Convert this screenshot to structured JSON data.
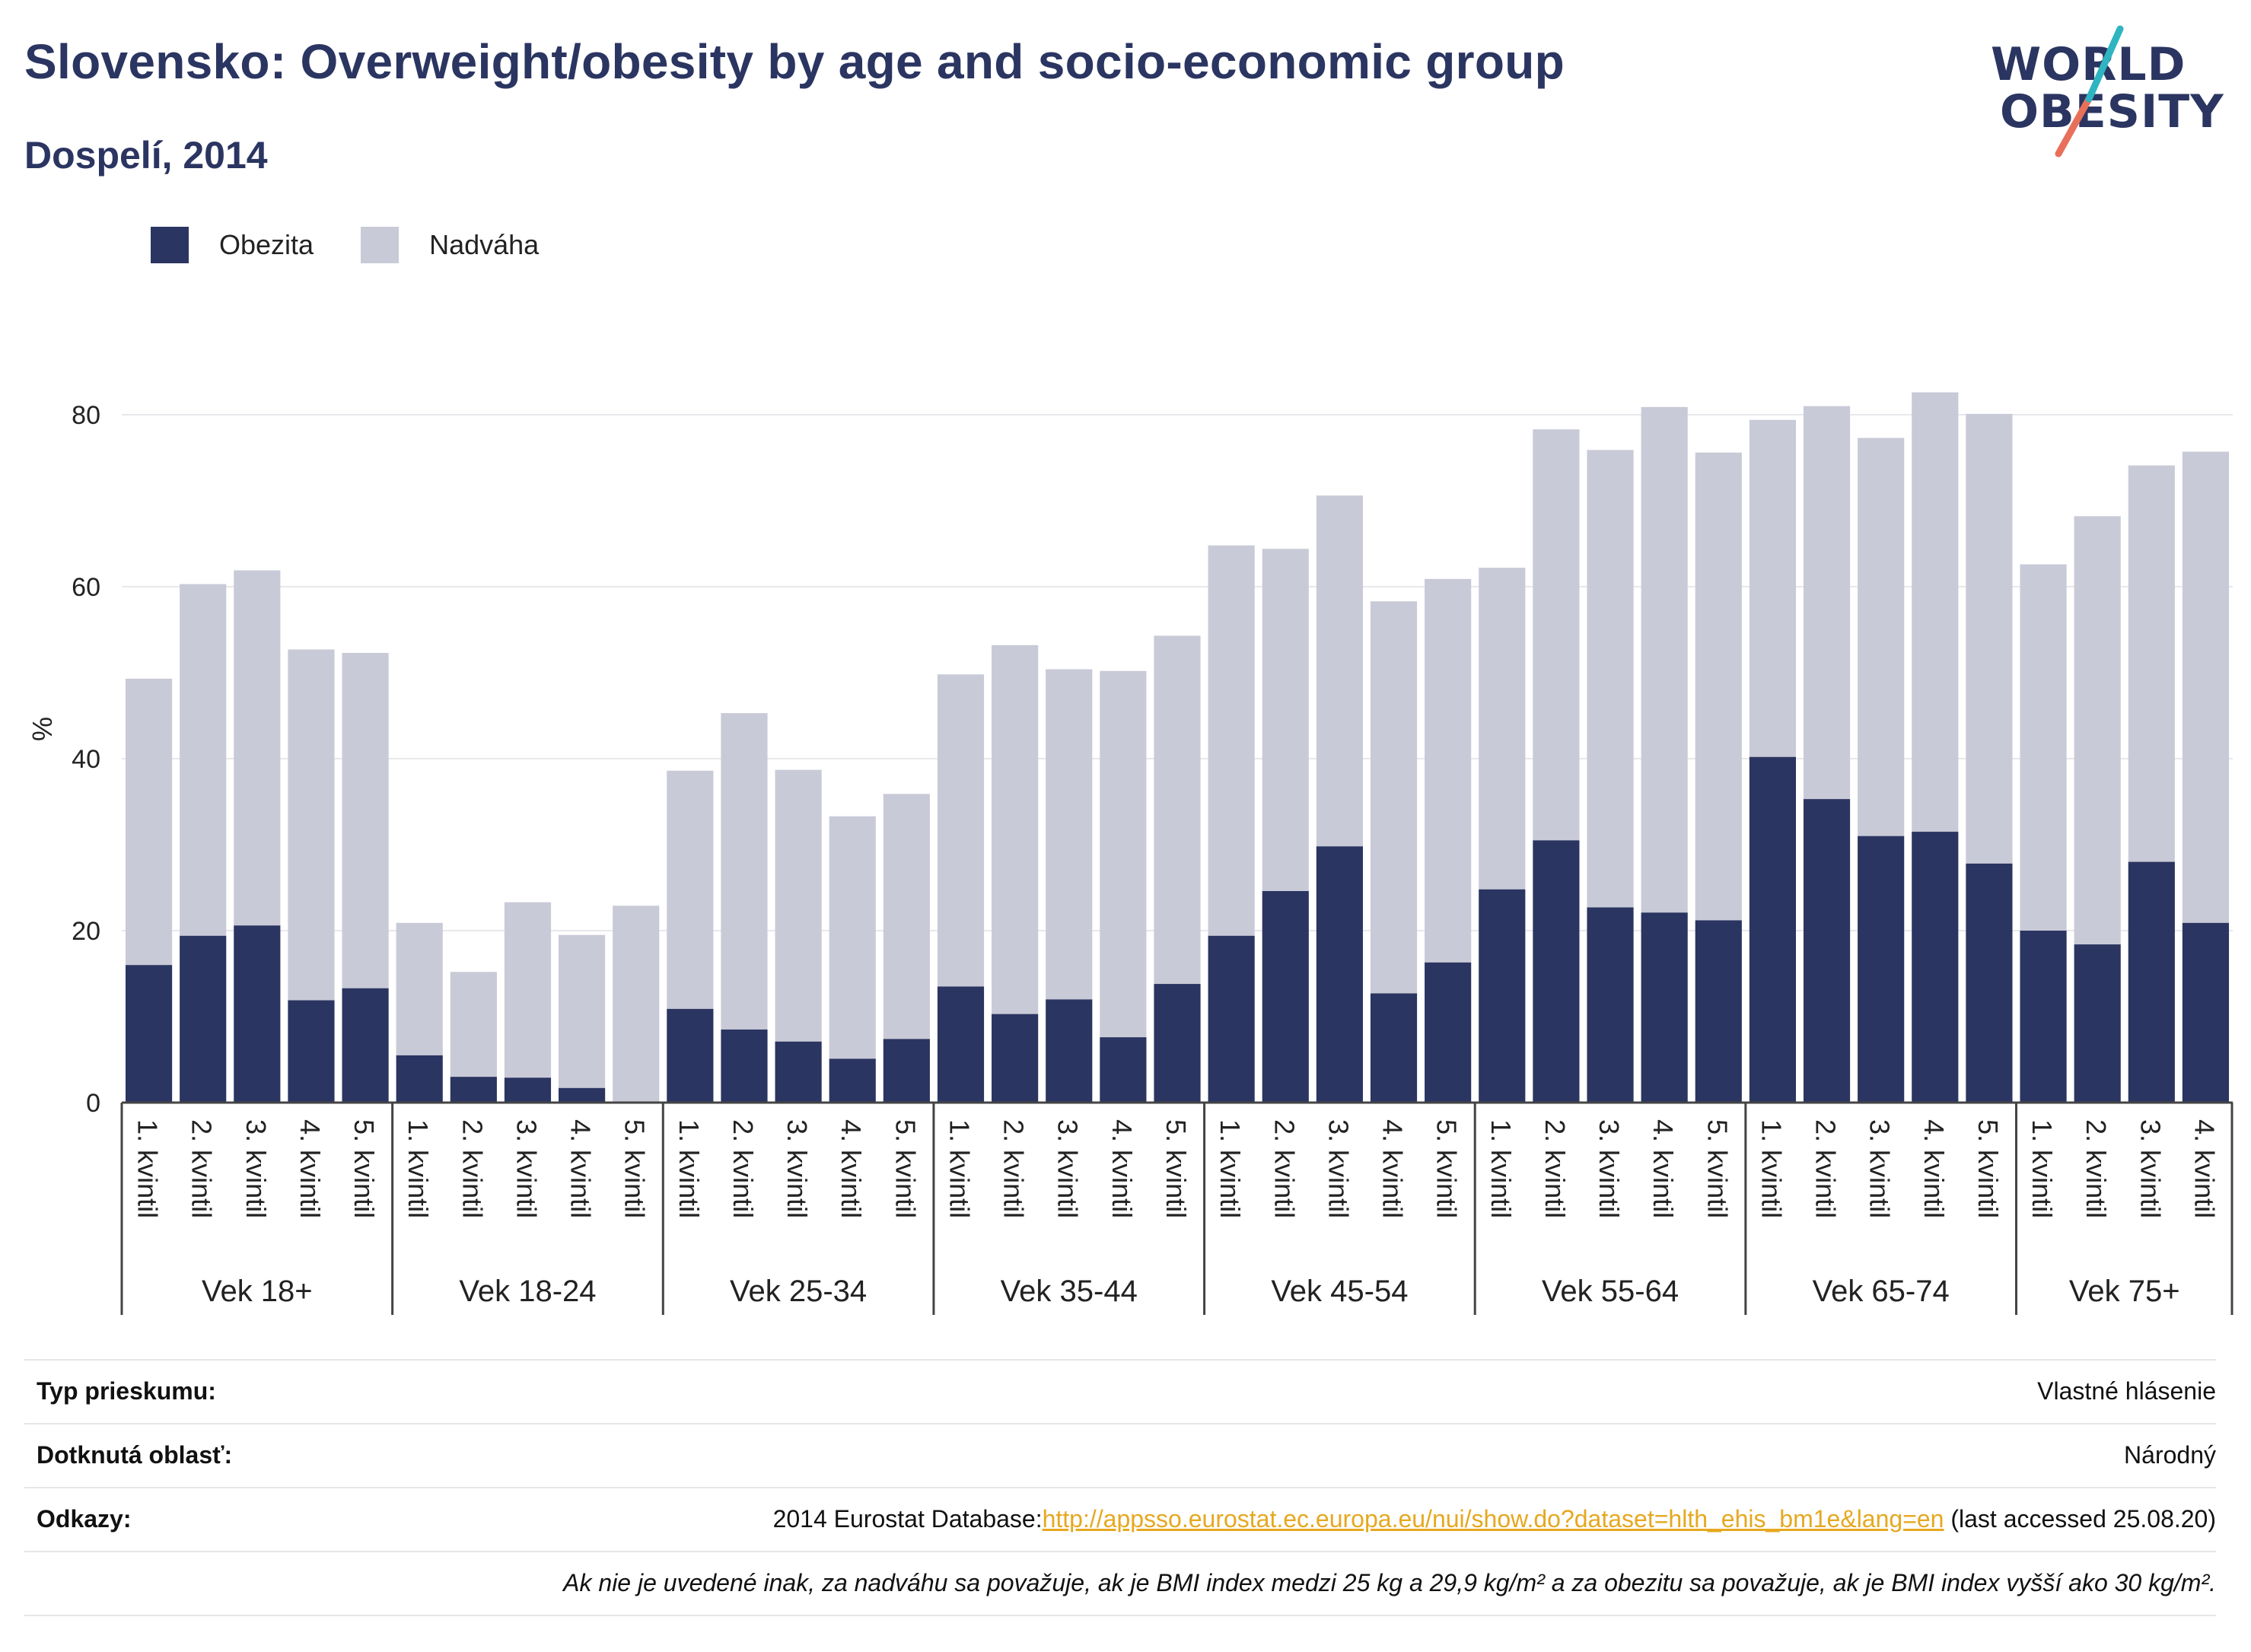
{
  "header": {
    "title": "Slovensko: Overweight/obesity by age and socio-economic group",
    "subtitle": "Dospelí, 2014"
  },
  "logo": {
    "line1": "WORLD",
    "line2": "OBESITY",
    "colors": {
      "text": "#2b3561",
      "slash_top": "#2fb5c1",
      "slash_bottom": "#e8705a"
    }
  },
  "legend": {
    "items": [
      {
        "label": "Obezita",
        "color": "#2b3561"
      },
      {
        "label": "Nadváha",
        "color": "#c9cad7"
      }
    ]
  },
  "chart_data": {
    "type": "bar",
    "stacked": true,
    "ylabel": "%",
    "ylim": [
      0,
      90
    ],
    "yticks": [
      0,
      20,
      40,
      60,
      80
    ],
    "grid": true,
    "legend_position": "top-left",
    "groups": [
      {
        "label": "Vek 18+",
        "categories": [
          "1. kvintil",
          "2. kvintil",
          "3. kvintil",
          "4. kvintil",
          "5. kvintil"
        ]
      },
      {
        "label": "Vek 18-24",
        "categories": [
          "1. kvintil",
          "2. kvintil",
          "3. kvintil",
          "4. kvintil",
          "5. kvintil"
        ]
      },
      {
        "label": "Vek 25-34",
        "categories": [
          "1. kvintil",
          "2. kvintil",
          "3. kvintil",
          "4. kvintil",
          "5. kvintil"
        ]
      },
      {
        "label": "Vek 35-44",
        "categories": [
          "1. kvintil",
          "2. kvintil",
          "3. kvintil",
          "4. kvintil",
          "5. kvintil"
        ]
      },
      {
        "label": "Vek 45-54",
        "categories": [
          "1. kvintil",
          "2. kvintil",
          "3. kvintil",
          "4. kvintil",
          "5. kvintil"
        ]
      },
      {
        "label": "Vek 55-64",
        "categories": [
          "1. kvintil",
          "2. kvintil",
          "3. kvintil",
          "4. kvintil",
          "5. kvintil"
        ]
      },
      {
        "label": "Vek 65-74",
        "categories": [
          "1. kvintil",
          "2. kvintil",
          "3. kvintil",
          "4. kvintil",
          "5. kvintil"
        ]
      },
      {
        "label": "Vek 75+",
        "categories": [
          "1. kvintil",
          "2. kvintil",
          "3. kvintil",
          "4. kvintil"
        ]
      }
    ],
    "series": [
      {
        "name": "Obezita",
        "color": "#2b3561",
        "values": [
          16.0,
          19.4,
          20.6,
          11.9,
          13.3,
          5.5,
          3.0,
          2.9,
          1.7,
          0.0,
          10.9,
          8.5,
          7.1,
          5.1,
          7.4,
          13.5,
          10.3,
          12.0,
          7.6,
          13.8,
          19.4,
          24.6,
          29.8,
          12.7,
          16.3,
          24.8,
          30.5,
          22.7,
          22.1,
          21.2,
          40.2,
          35.3,
          31.0,
          31.5,
          27.8,
          20.0,
          18.4,
          28.0,
          20.9
        ]
      },
      {
        "name": "Nadváha",
        "color": "#c9cad7",
        "values": [
          33.3,
          40.9,
          41.3,
          40.8,
          39.0,
          15.4,
          12.2,
          20.4,
          17.8,
          22.9,
          27.7,
          36.8,
          31.6,
          28.2,
          28.5,
          36.3,
          42.9,
          38.4,
          42.6,
          40.5,
          45.4,
          39.8,
          40.8,
          45.6,
          44.6,
          37.4,
          47.8,
          53.2,
          58.8,
          54.4,
          39.2,
          45.7,
          46.3,
          51.1,
          52.3,
          42.6,
          49.8,
          46.1,
          54.8
        ]
      }
    ]
  },
  "info": {
    "survey_label": "Typ prieskumu:",
    "survey_value": "Vlastné hlásenie",
    "area_label": "Dotknutá oblasť:",
    "area_value": "Národný",
    "refs_label": "Odkazy:",
    "refs_prefix": "2014 Eurostat Database:",
    "refs_link": "http://appsso.eurostat.ec.europa.eu/nui/show.do?dataset=hlth_ehis_bm1e&lang=en",
    "refs_suffix": " (last accessed 25.08.20)",
    "note": "Ak nie je uvedené inak, za nadváhu sa považuje, ak je BMI index medzi 25 kg a 29,9 kg/m² a za obezitu sa považuje, ak je BMI index vyšší ako 30 kg/m²."
  }
}
